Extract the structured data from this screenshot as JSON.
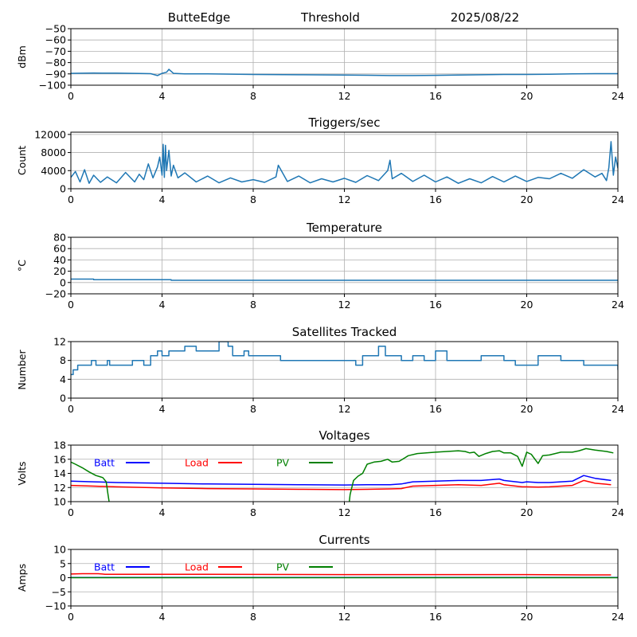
{
  "header": {
    "station": "ButteEdge",
    "mode": "Threshold",
    "date": "2025/08/22"
  },
  "chart_data": [
    {
      "id": "signal",
      "type": "line",
      "title": "",
      "xlabel": "",
      "ylabel": "dBm",
      "xlim": [
        0,
        24
      ],
      "ylim": [
        -100,
        -50
      ],
      "xticks": [
        0,
        4,
        8,
        12,
        16,
        20,
        24
      ],
      "yticks": [
        -100,
        -90,
        -80,
        -70,
        -60,
        -50
      ],
      "ytick_labels": [
        "−100",
        "−90",
        "−80",
        "−70",
        "−60",
        "−50"
      ],
      "grid": true,
      "series": [
        {
          "color": "#1f77b4",
          "x": [
            0,
            1,
            2,
            3,
            3.5,
            3.8,
            4.0,
            4.2,
            4.3,
            4.5,
            5,
            6,
            8,
            10,
            12,
            13,
            14,
            15,
            16,
            17,
            18,
            19,
            20,
            21,
            22,
            23,
            24
          ],
          "y": [
            -89.5,
            -89.3,
            -89.4,
            -89.6,
            -89.8,
            -91.5,
            -89.5,
            -88.5,
            -86.0,
            -89.5,
            -90.0,
            -90.0,
            -90.5,
            -90.8,
            -91.0,
            -91.2,
            -91.5,
            -91.5,
            -91.3,
            -91.0,
            -90.8,
            -90.5,
            -90.5,
            -90.3,
            -90.0,
            -89.8,
            -89.8
          ]
        }
      ]
    },
    {
      "id": "triggers",
      "type": "line",
      "title": "Triggers/sec",
      "xlabel": "",
      "ylabel": "Count",
      "xlim": [
        0,
        24
      ],
      "ylim": [
        0,
        12500
      ],
      "xticks": [
        0,
        4,
        8,
        12,
        16,
        20,
        24
      ],
      "yticks": [
        0,
        4000,
        8000,
        12000
      ],
      "grid": true,
      "series": [
        {
          "color": "#1f77b4",
          "x": [
            0,
            0.2,
            0.4,
            0.6,
            0.8,
            1.0,
            1.3,
            1.6,
            2.0,
            2.4,
            2.8,
            3.0,
            3.2,
            3.4,
            3.6,
            3.8,
            3.9,
            4.0,
            4.05,
            4.1,
            4.15,
            4.2,
            4.3,
            4.4,
            4.5,
            4.7,
            5.0,
            5.5,
            6.0,
            6.5,
            7.0,
            7.5,
            8.0,
            8.5,
            9.0,
            9.1,
            9.5,
            10.0,
            10.5,
            11.0,
            11.5,
            12.0,
            12.5,
            13.0,
            13.5,
            13.9,
            14.0,
            14.1,
            14.5,
            15.0,
            15.5,
            16.0,
            16.5,
            17.0,
            17.5,
            18.0,
            18.5,
            19.0,
            19.5,
            20.0,
            20.5,
            21.0,
            21.5,
            22.0,
            22.5,
            23.0,
            23.3,
            23.5,
            23.6,
            23.7,
            23.8,
            23.9,
            24.0
          ],
          "y": [
            2500,
            3800,
            1500,
            4200,
            1200,
            3000,
            1400,
            2600,
            1300,
            3600,
            1500,
            3200,
            2000,
            5500,
            2400,
            4800,
            7000,
            3000,
            9800,
            2500,
            9600,
            4000,
            8500,
            2800,
            5200,
            2400,
            3500,
            1500,
            2800,
            1300,
            2400,
            1500,
            2000,
            1400,
            2600,
            5200,
            1600,
            2800,
            1300,
            2200,
            1500,
            2300,
            1400,
            2900,
            1800,
            4000,
            6300,
            2200,
            3400,
            1600,
            3000,
            1500,
            2600,
            1200,
            2200,
            1300,
            2700,
            1500,
            2800,
            1600,
            2500,
            2200,
            3400,
            2300,
            4200,
            2600,
            3400,
            1800,
            4600,
            10400,
            3000,
            7000,
            4500
          ]
        }
      ]
    },
    {
      "id": "temperature",
      "type": "line",
      "title": "Temperature",
      "xlabel": "",
      "ylabel": "°C",
      "xlim": [
        0,
        24
      ],
      "ylim": [
        -20,
        80
      ],
      "xticks": [
        0,
        4,
        8,
        12,
        16,
        20,
        24
      ],
      "yticks": [
        -20,
        0,
        20,
        40,
        60,
        80
      ],
      "ytick_labels": [
        "−20",
        "0",
        "20",
        "40",
        "60",
        "80"
      ],
      "grid": true,
      "series": [
        {
          "color": "#1f77b4",
          "x": [
            0,
            1.0,
            1.0,
            4.4,
            4.4,
            24
          ],
          "y": [
            6,
            6,
            5,
            5,
            4,
            4
          ]
        }
      ]
    },
    {
      "id": "satellites",
      "type": "line",
      "title": "Satellites Tracked",
      "xlabel": "",
      "ylabel": "Number",
      "xlim": [
        0,
        24
      ],
      "ylim": [
        0,
        12
      ],
      "xticks": [
        0,
        4,
        8,
        12,
        16,
        20,
        24
      ],
      "yticks": [
        0,
        4,
        8,
        12
      ],
      "grid": true,
      "series": [
        {
          "color": "#1f77b4",
          "step": true,
          "x": [
            0,
            0.1,
            0.3,
            0.9,
            1.1,
            1.6,
            1.7,
            2.7,
            3.2,
            3.5,
            3.8,
            4.0,
            4.3,
            4.6,
            5.0,
            5.5,
            6.5,
            6.9,
            7.1,
            7.6,
            7.8,
            8.2,
            9.2,
            9.6,
            12.5,
            12.8,
            13.5,
            13.8,
            14.5,
            15.0,
            15.5,
            16.0,
            16.5,
            17.5,
            18.0,
            19.0,
            19.5,
            20.5,
            21.5,
            22.2,
            22.5,
            23.5,
            24
          ],
          "y": [
            5,
            6,
            7,
            8,
            7,
            8,
            7,
            8,
            7,
            9,
            10,
            9,
            10,
            10,
            11,
            10,
            12,
            11,
            9,
            10,
            9,
            9,
            8,
            8,
            7,
            9,
            11,
            9,
            8,
            9,
            8,
            10,
            8,
            8,
            9,
            8,
            7,
            9,
            8,
            8,
            7,
            7,
            6
          ]
        }
      ]
    },
    {
      "id": "voltages",
      "type": "line",
      "title": "Voltages",
      "xlabel": "",
      "ylabel": "Volts",
      "xlim": [
        0,
        24
      ],
      "ylim": [
        10,
        18
      ],
      "xticks": [
        0,
        4,
        8,
        12,
        16,
        20,
        24
      ],
      "yticks": [
        10,
        12,
        14,
        16,
        18
      ],
      "grid": true,
      "legend": "top-left",
      "series": [
        {
          "name": "Batt",
          "color": "#0000ff",
          "x": [
            0,
            1,
            2,
            4,
            6,
            8,
            10,
            12,
            13,
            14,
            14.5,
            15,
            16,
            17,
            18,
            18.8,
            19,
            19.8,
            20,
            20.5,
            21,
            21.5,
            22,
            22.5,
            23,
            23.7
          ],
          "y": [
            12.9,
            12.8,
            12.7,
            12.6,
            12.5,
            12.45,
            12.4,
            12.35,
            12.4,
            12.4,
            12.5,
            12.8,
            12.9,
            13.0,
            13.0,
            13.2,
            13.0,
            12.7,
            12.8,
            12.7,
            12.7,
            12.8,
            12.9,
            13.7,
            13.3,
            13.0
          ]
        },
        {
          "name": "Load",
          "color": "#ff0000",
          "x": [
            0,
            1,
            2,
            4,
            6,
            8,
            10,
            12,
            13,
            14,
            14.5,
            15,
            16,
            17,
            18,
            18.8,
            19,
            19.8,
            20,
            20.5,
            21,
            21.5,
            22,
            22.5,
            23,
            23.7
          ],
          "y": [
            12.3,
            12.2,
            12.1,
            11.95,
            11.85,
            11.8,
            11.75,
            11.7,
            11.75,
            11.8,
            11.85,
            12.2,
            12.3,
            12.4,
            12.3,
            12.6,
            12.4,
            12.1,
            12.1,
            12.05,
            12.1,
            12.2,
            12.3,
            13.0,
            12.6,
            12.4
          ]
        },
        {
          "name": "PV",
          "color": "#008000",
          "x": [
            0,
            0.2,
            0.5,
            0.8,
            1.1,
            1.4,
            1.55,
            1.62,
            1.7,
            12.2,
            12.25,
            12.4,
            12.6,
            12.8,
            13.0,
            13.3,
            13.6,
            13.9,
            14.1,
            14.4,
            14.8,
            15.2,
            15.6,
            16.0,
            16.5,
            17.0,
            17.3,
            17.5,
            17.7,
            17.9,
            18.2,
            18.5,
            18.8,
            19.0,
            19.3,
            19.6,
            19.8,
            20.0,
            20.2,
            20.5,
            20.7,
            21.0,
            21.5,
            22.0,
            22.3,
            22.6,
            23.0,
            23.5,
            23.8
          ],
          "y": [
            15.6,
            15.3,
            14.8,
            14.2,
            13.7,
            13.4,
            12.8,
            11.2,
            9.5,
            9.5,
            11.0,
            13.0,
            13.6,
            14.0,
            15.3,
            15.6,
            15.7,
            16.0,
            15.6,
            15.7,
            16.5,
            16.8,
            16.9,
            17.0,
            17.1,
            17.2,
            17.1,
            16.9,
            17.0,
            16.4,
            16.8,
            17.1,
            17.2,
            16.9,
            16.9,
            16.4,
            15.0,
            17.0,
            16.7,
            15.4,
            16.5,
            16.6,
            17.0,
            17.0,
            17.2,
            17.5,
            17.3,
            17.1,
            16.9
          ]
        }
      ]
    },
    {
      "id": "currents",
      "type": "line",
      "title": "Currents",
      "xlabel": "",
      "ylabel": "Amps",
      "xlim": [
        0,
        24
      ],
      "ylim": [
        -10,
        10
      ],
      "xticks": [
        0,
        4,
        8,
        12,
        16,
        20,
        24
      ],
      "yticks": [
        -10,
        -5,
        0,
        5,
        10
      ],
      "ytick_labels": [
        "−10",
        "−5",
        "0",
        "5",
        "10"
      ],
      "grid": true,
      "legend": "top-left",
      "series": [
        {
          "name": "Batt",
          "color": "#0000ff",
          "x": [
            0,
            24
          ],
          "y": [
            0.05,
            0.05
          ]
        },
        {
          "name": "Load",
          "color": "#ff0000",
          "x": [
            0,
            0.5,
            1.2,
            1.5,
            4,
            8,
            12,
            16,
            20,
            22.5,
            23.7
          ],
          "y": [
            1.3,
            1.4,
            1.4,
            1.2,
            1.2,
            1.15,
            1.1,
            1.1,
            1.1,
            1.0,
            1.0
          ]
        },
        {
          "name": "PV",
          "color": "#008000",
          "x": [
            0,
            24
          ],
          "y": [
            0.0,
            0.0
          ]
        }
      ]
    }
  ]
}
